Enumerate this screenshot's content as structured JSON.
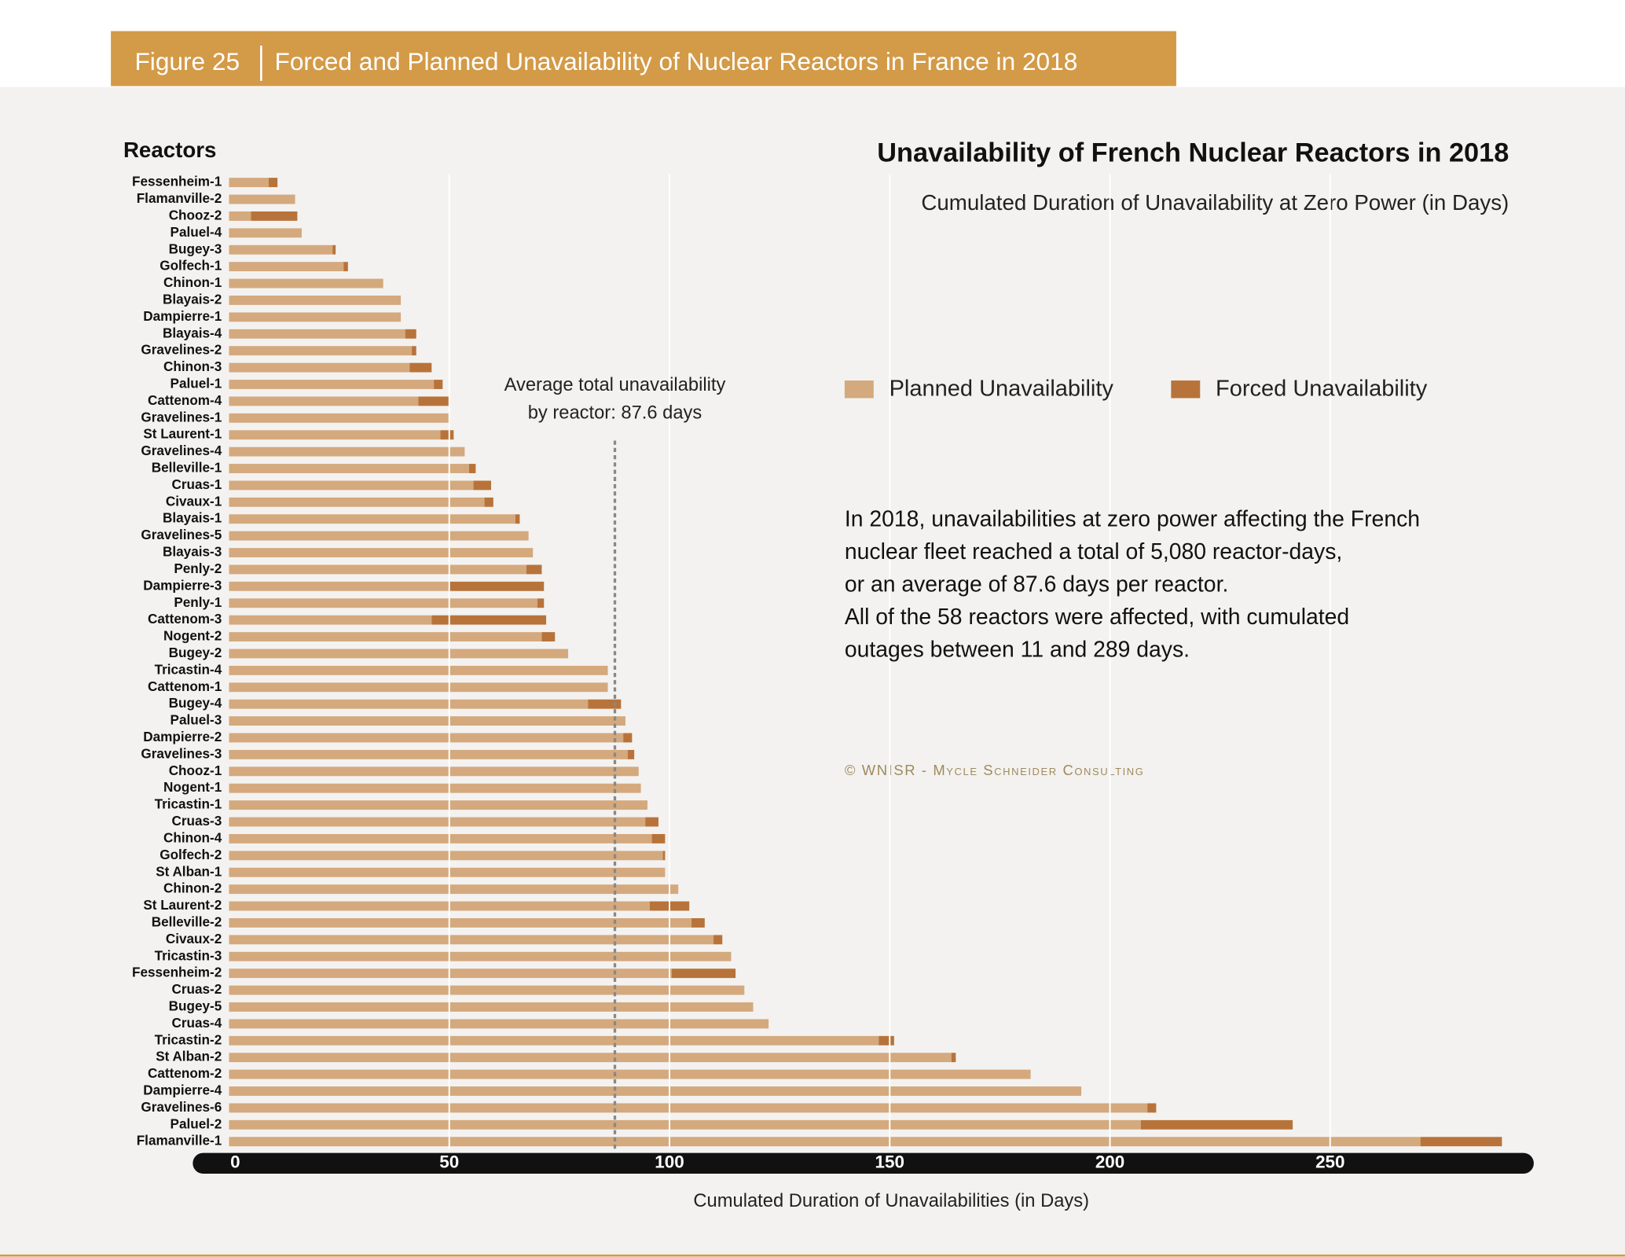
{
  "chart_data": {
    "type": "bar",
    "orientation": "horizontal",
    "stacked": true,
    "figure_label": "Figure 25",
    "figure_title": "Forced and Planned Unavailability of Nuclear Reactors in France in 2018",
    "title": "Unavailability of French Nuclear Reactors in 2018",
    "subtitle": "Cumulated Duration of Unavailability at Zero Power (in Days)",
    "y_axis_title": "Reactors",
    "x_axis_title": "Cumulated Duration of Unavailabilities (in Days)",
    "description": [
      "In 2018, unavailabilities at zero power affecting the French",
      "nuclear fleet reached a total of 5,080 reactor-days,",
      "or an average of 87.6 days per reactor.",
      "All of the 58 reactors were affected, with cumulated",
      "outages between 11 and 289 days."
    ],
    "credit": "© WNISR - Mycle Schneider Consulting",
    "average": 87.6,
    "average_annotation": [
      "Average total unavailability",
      "by reactor: 87.6 days"
    ],
    "categories": [
      "Fessenheim-1",
      "Flamanville-2",
      "Chooz-2",
      "Paluel-4",
      "Bugey-3",
      "Golfech-1",
      "Chinon-1",
      "Blayais-2",
      "Dampierre-1",
      "Blayais-4",
      "Gravelines-2",
      "Chinon-3",
      "Paluel-1",
      "Cattenom-4",
      "Gravelines-1",
      "St Laurent-1",
      "Gravelines-4",
      "Belleville-1",
      "Cruas-1",
      "Civaux-1",
      "Blayais-1",
      "Gravelines-5",
      "Blayais-3",
      "Penly-2",
      "Dampierre-3",
      "Penly-1",
      "Cattenom-3",
      "Nogent-2",
      "Bugey-2",
      "Tricastin-4",
      "Cattenom-1",
      "Bugey-4",
      "Paluel-3",
      "Dampierre-2",
      "Gravelines-3",
      "Chooz-1",
      "Nogent-1",
      "Tricastin-1",
      "Cruas-3",
      "Chinon-4",
      "Golfech-2",
      "St Alban-1",
      "Chinon-2",
      "St Laurent-2",
      "Belleville-2",
      "Civaux-2",
      "Tricastin-3",
      "Fessenheim-2",
      "Cruas-2",
      "Bugey-5",
      "Cruas-4",
      "Tricastin-2",
      "St Alban-2",
      "Cattenom-2",
      "Dampierre-4",
      "Gravelines-6",
      "Paluel-2",
      "Flamanville-1"
    ],
    "series": [
      {
        "name": "Planned Unavailability",
        "color": "#d4a97d",
        "values": [
          9,
          15,
          5,
          16.5,
          23.5,
          26,
          35,
          39,
          39,
          40,
          41.5,
          41,
          46.5,
          43,
          50,
          48,
          53.5,
          54.5,
          55.5,
          58,
          65,
          68,
          69,
          67.5,
          50,
          70,
          46,
          71,
          77,
          86,
          86,
          81.5,
          90,
          89.5,
          90.5,
          93,
          93.5,
          95,
          94.5,
          96,
          98.5,
          99,
          102,
          95.5,
          105,
          110,
          114,
          100.5,
          117,
          119,
          122.5,
          147.5,
          164,
          182,
          193.5,
          208.5,
          207,
          270.5
        ]
      },
      {
        "name": "Forced Unavailability",
        "color": "#b8733a",
        "values": [
          2,
          0,
          10.5,
          0,
          0.7,
          1,
          0,
          0,
          0,
          2.5,
          1,
          5,
          2,
          7,
          0,
          3,
          0,
          1.5,
          4,
          2,
          1,
          0,
          0,
          3.5,
          21.5,
          1.5,
          26,
          3,
          0,
          0,
          0,
          7.5,
          0,
          2,
          1.5,
          0,
          0,
          0,
          3,
          3,
          0.5,
          0,
          0,
          9,
          3,
          2,
          0,
          14.5,
          0,
          0,
          0,
          3.5,
          1,
          0,
          0,
          2,
          34.5,
          18.5
        ]
      }
    ],
    "xlim": [
      0,
      290
    ],
    "xticks": [
      0,
      50,
      100,
      150,
      200,
      250
    ],
    "grid": true
  }
}
